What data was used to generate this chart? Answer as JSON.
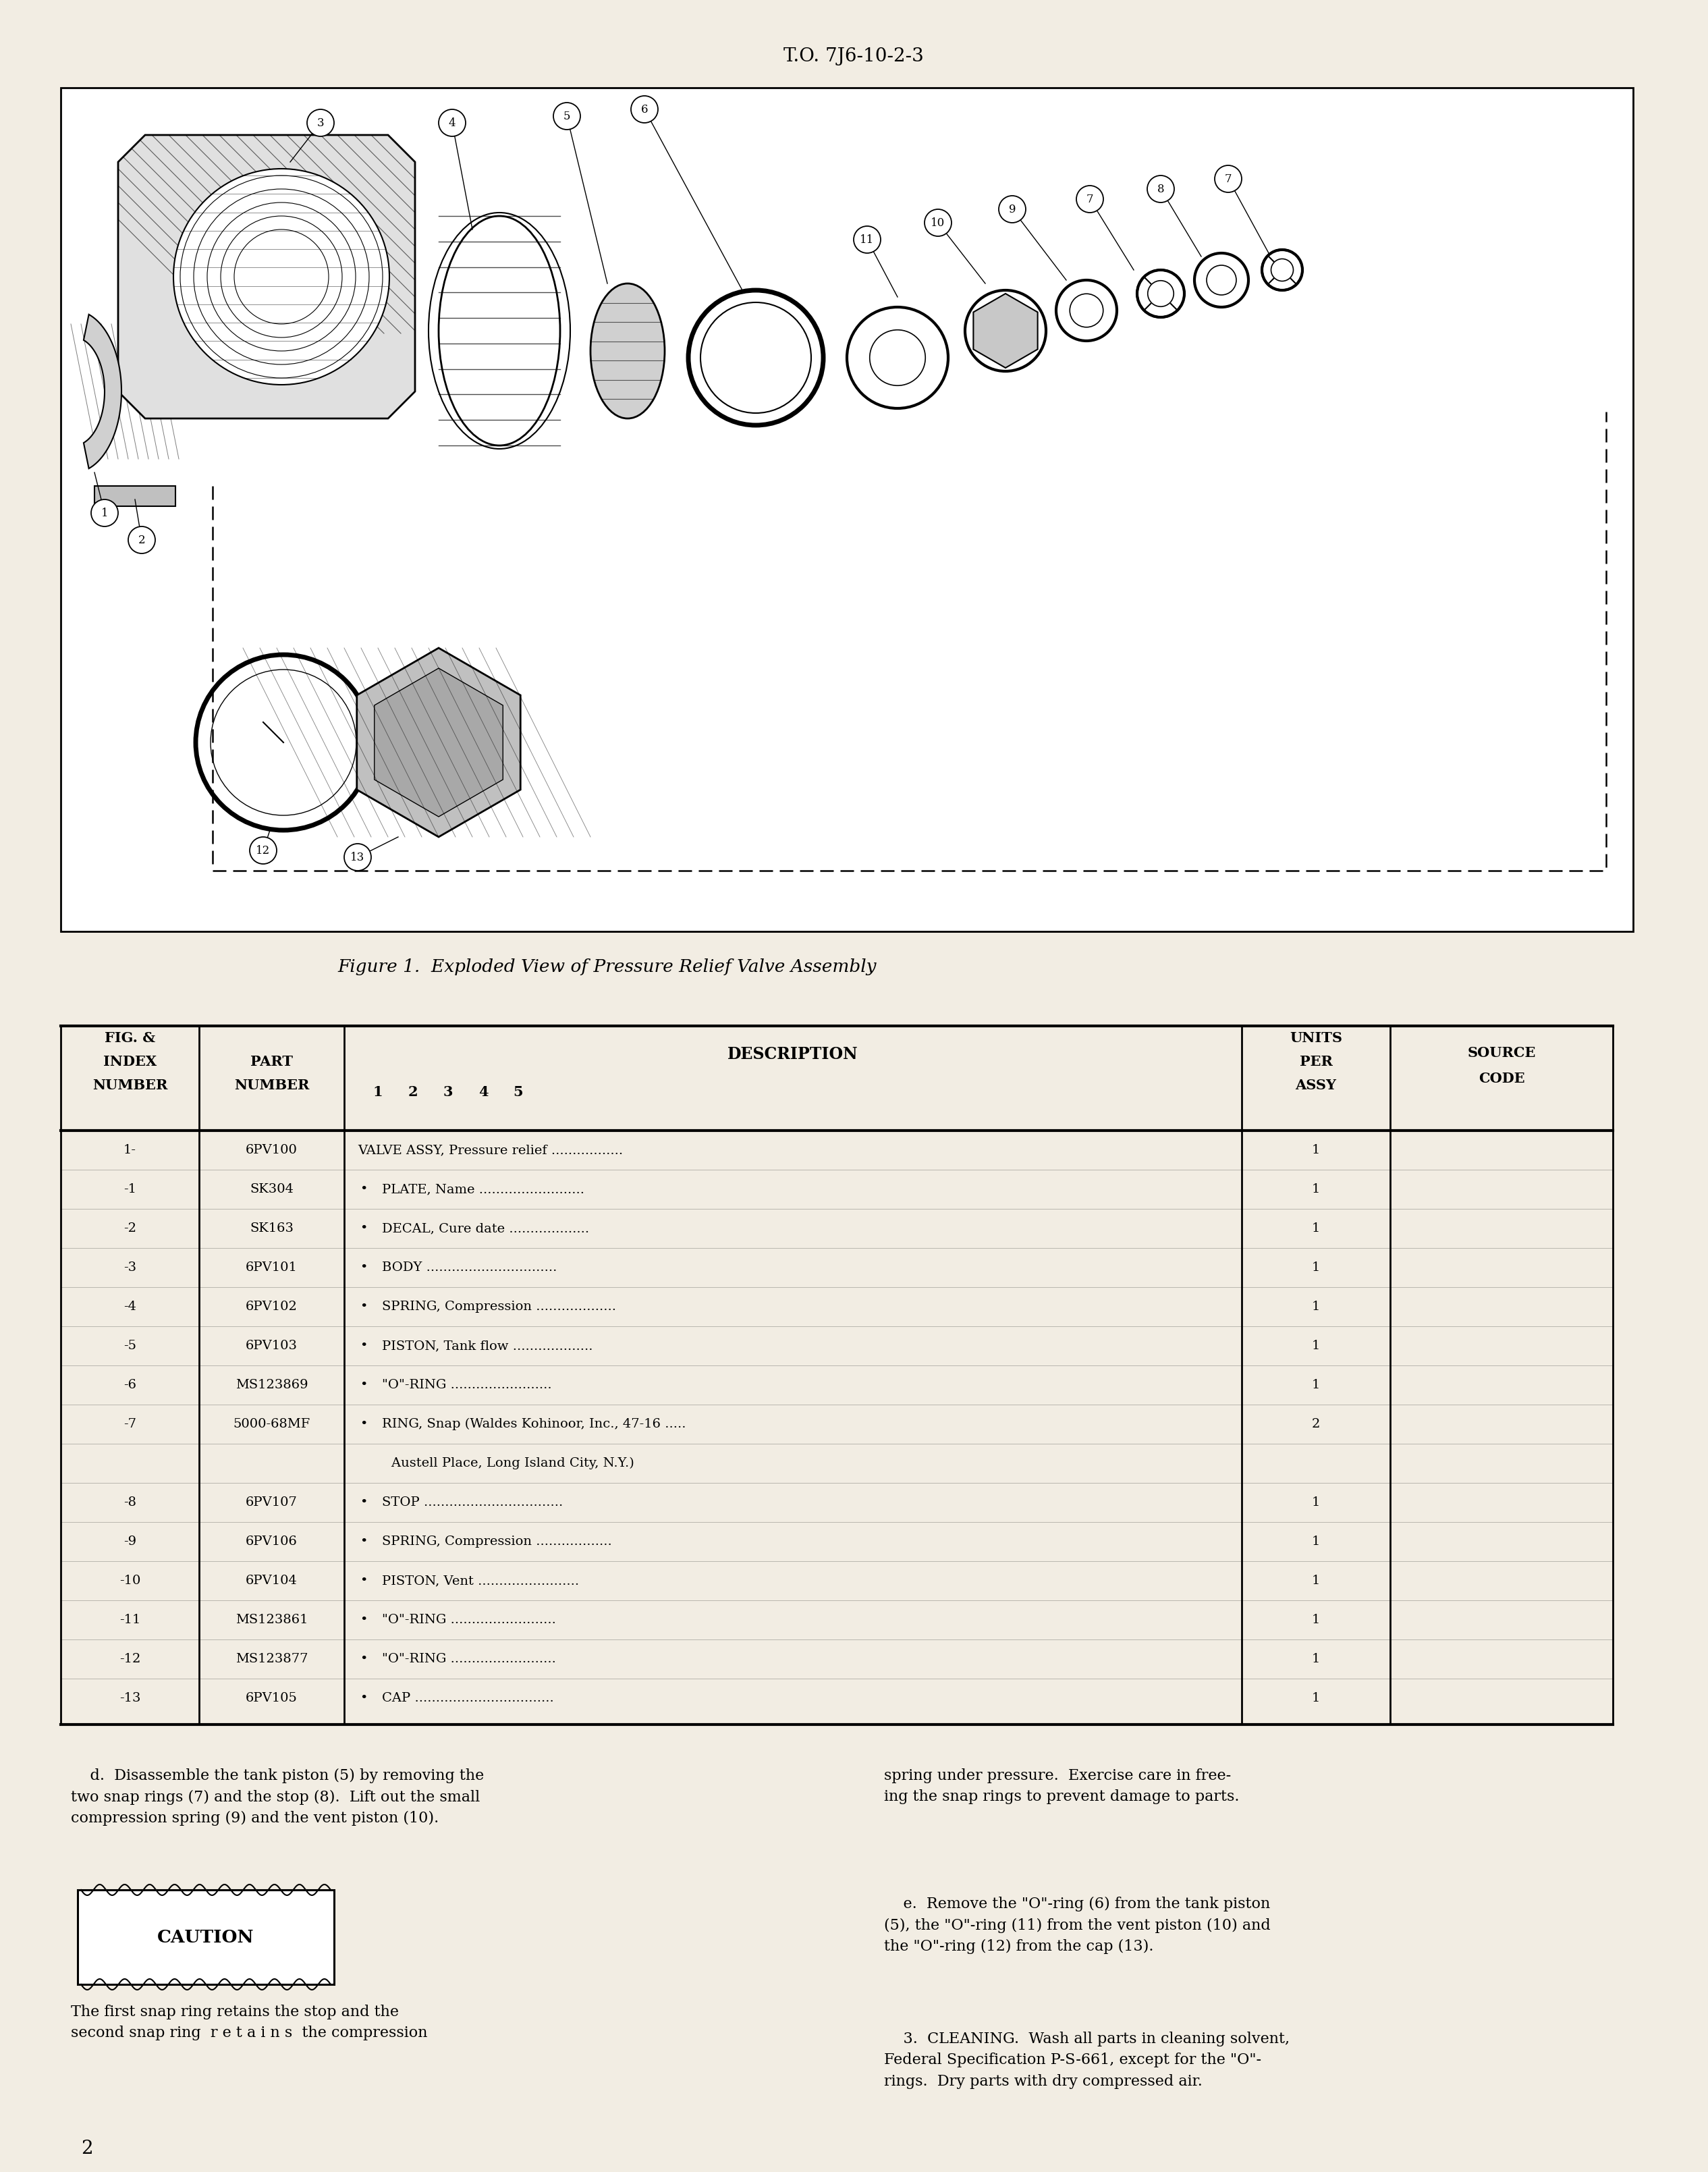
{
  "page_bg": "#f2ede3",
  "header_text": "T.O. 7J6-10-2-3",
  "figure_caption": "Figure 1.  Exploded View of Pressure Relief Valve Assembly",
  "page_number": "2",
  "table_rows": [
    {
      "index": "1-",
      "part": "6PV100",
      "bullet": false,
      "desc": "VALVE ASSY, Pressure relief",
      "dots": ".................",
      "qty": "1"
    },
    {
      "index": "-1",
      "part": "SK304",
      "bullet": true,
      "desc": "PLATE, Name",
      "dots": ".........................",
      "qty": "1"
    },
    {
      "index": "-2",
      "part": "SK163",
      "bullet": true,
      "desc": "DECAL, Cure date",
      "dots": "...................",
      "qty": "1"
    },
    {
      "index": "-3",
      "part": "6PV101",
      "bullet": true,
      "desc": "BODY",
      "dots": "...............................",
      "qty": "1"
    },
    {
      "index": "-4",
      "part": "6PV102",
      "bullet": true,
      "desc": "SPRING, Compression",
      "dots": "...................",
      "qty": "1"
    },
    {
      "index": "-5",
      "part": "6PV103",
      "bullet": true,
      "desc": "PISTON, Tank flow",
      "dots": "...................",
      "qty": "1"
    },
    {
      "index": "-6",
      "part": "MS123869",
      "bullet": true,
      "desc": "\"O\"-RING",
      "dots": "........................",
      "qty": "1"
    },
    {
      "index": "-7",
      "part": "5000-68MF",
      "bullet": true,
      "desc": "RING, Snap (Waldes Kohinoor, Inc., 47-16",
      "dots": ".....",
      "qty": "2"
    },
    {
      "index": "",
      "part": "",
      "bullet": false,
      "desc": "        Austell Place, Long Island City, N.Y.)",
      "dots": "",
      "qty": ""
    },
    {
      "index": "-8",
      "part": "6PV107",
      "bullet": true,
      "desc": "STOP",
      "dots": ".................................",
      "qty": "1"
    },
    {
      "index": "-9",
      "part": "6PV106",
      "bullet": true,
      "desc": "SPRING, Compression",
      "dots": "..................",
      "qty": "1"
    },
    {
      "index": "-10",
      "part": "6PV104",
      "bullet": true,
      "desc": "PISTON, Vent",
      "dots": "........................",
      "qty": "1"
    },
    {
      "index": "-11",
      "part": "MS123861",
      "bullet": true,
      "desc": "\"O\"-RING",
      "dots": ".........................",
      "qty": "1"
    },
    {
      "index": "-12",
      "part": "MS123877",
      "bullet": true,
      "desc": "\"O\"-RING",
      "dots": ".........................",
      "qty": "1"
    },
    {
      "index": "-13",
      "part": "6PV105",
      "bullet": true,
      "desc": "CAP",
      "dots": ".................................",
      "qty": "1"
    }
  ]
}
